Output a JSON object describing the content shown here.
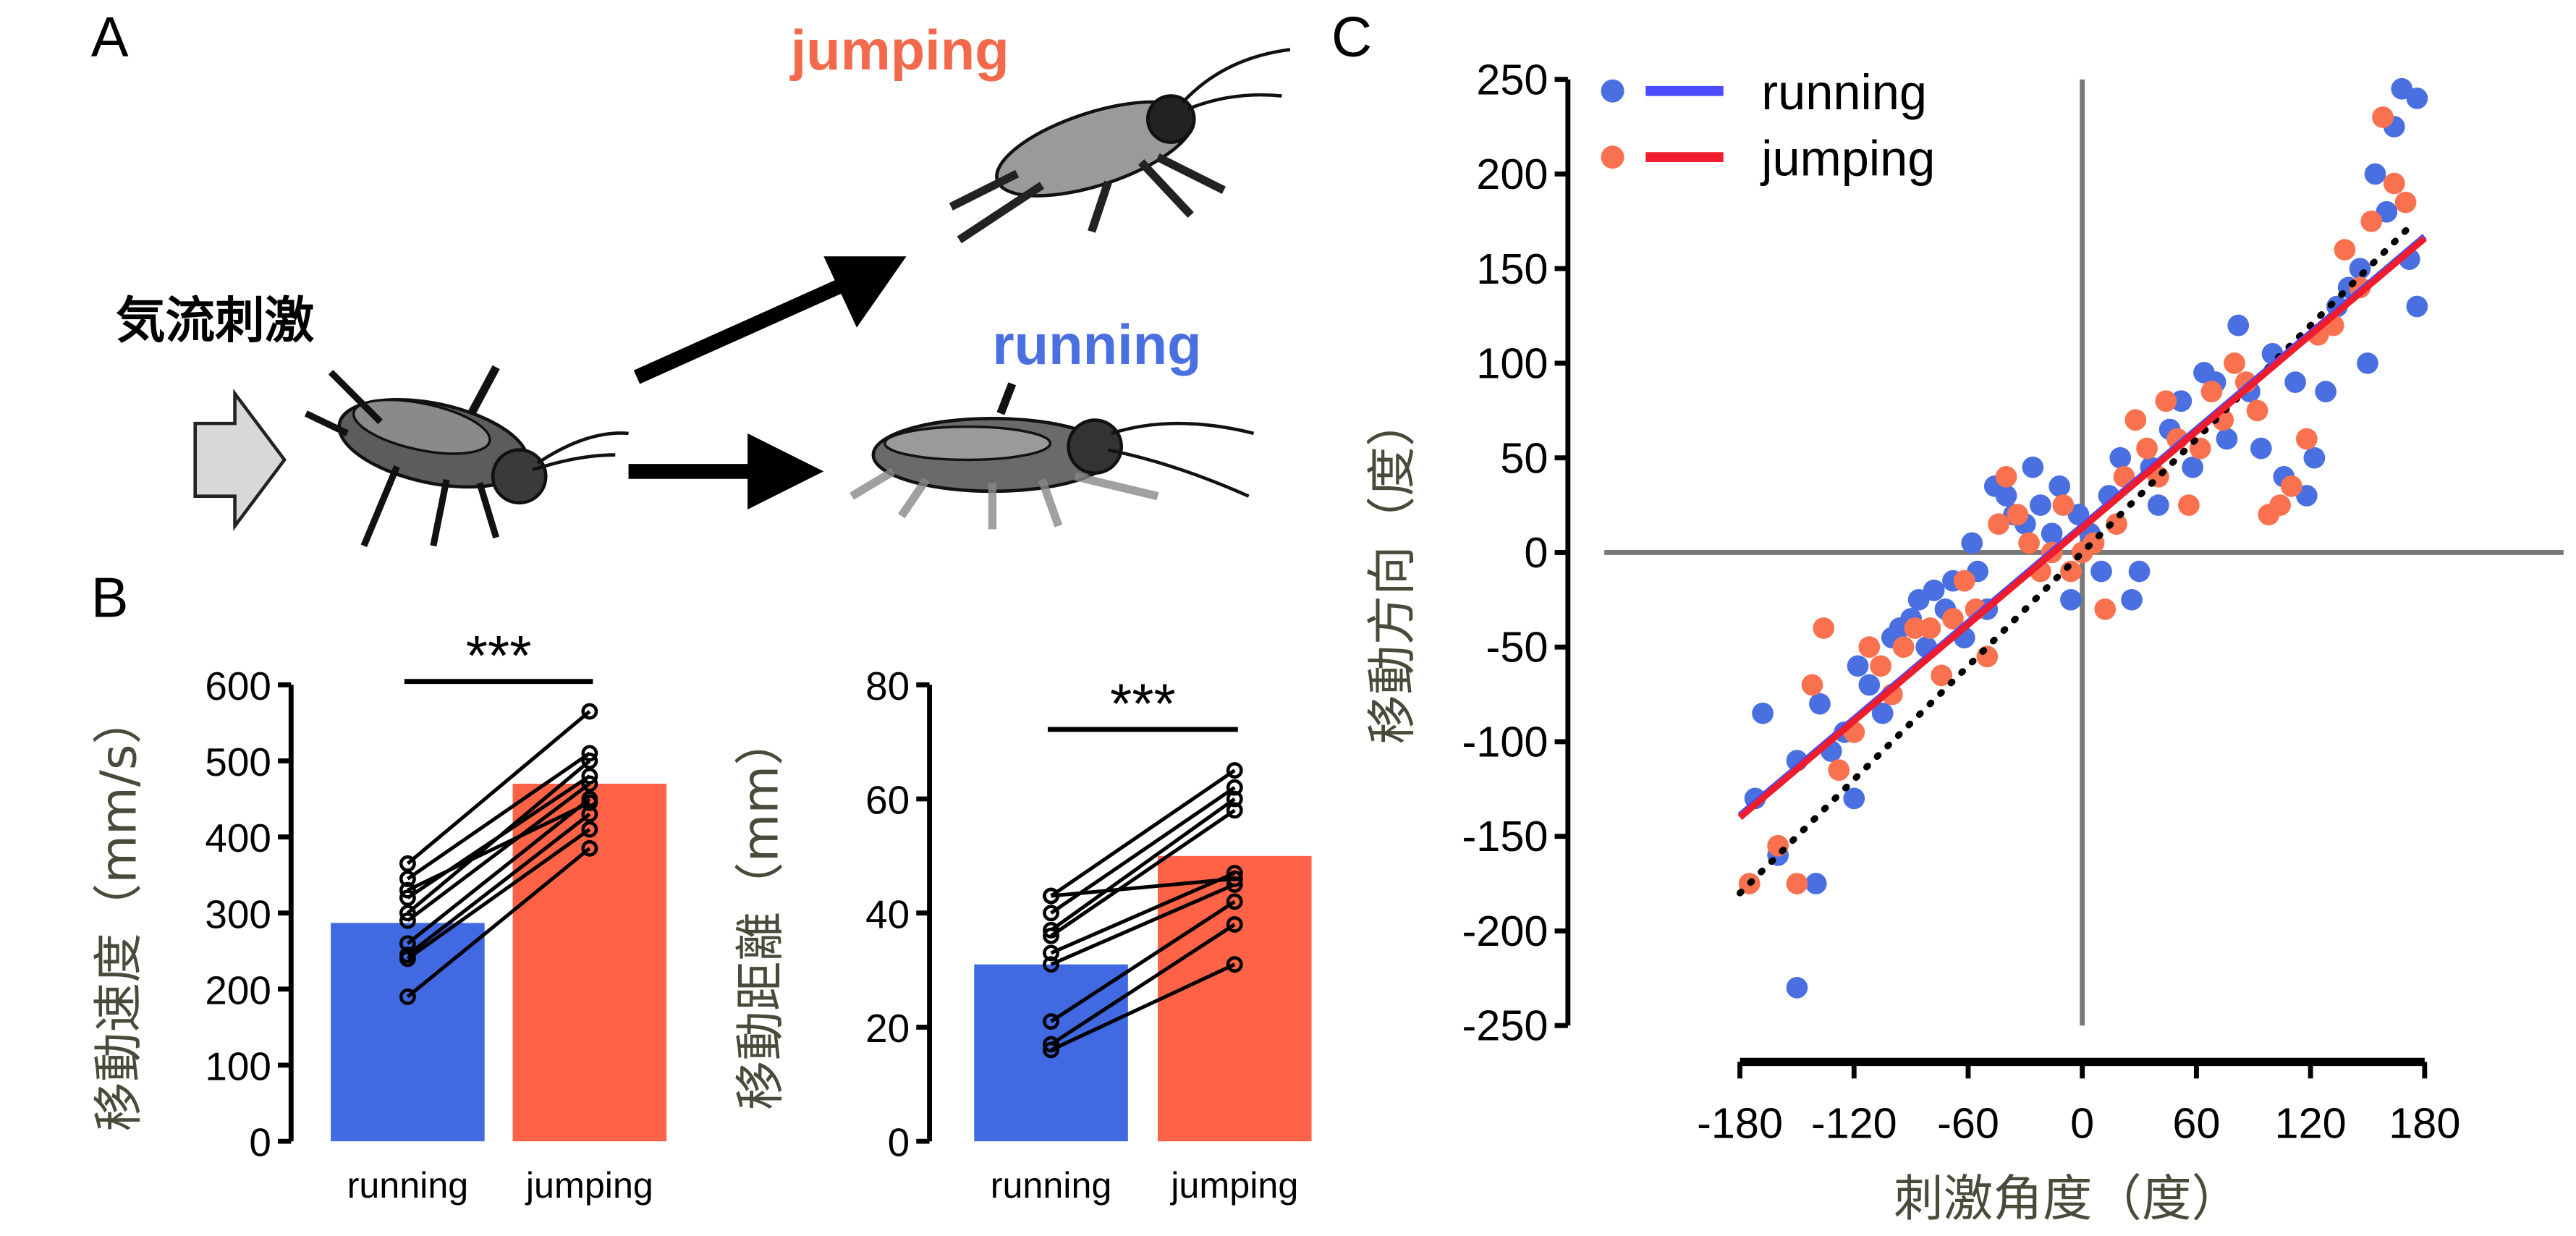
{
  "panels": {
    "a": "A",
    "b": "B",
    "c": "C"
  },
  "diagram": {
    "stimulus": "気流刺激",
    "jumping": "jumping",
    "running": "running",
    "jump_color": "#f26a4b",
    "run_color": "#4a6fe0"
  },
  "chart_data": [
    {
      "type": "bar",
      "categories": [
        "running",
        "jumping"
      ],
      "values": [
        287,
        470
      ],
      "colors": [
        "#4169e1",
        "#ff6347"
      ],
      "ylabel": "移動速度（mm/s）",
      "ylim": [
        0,
        600
      ],
      "yticks": [
        0,
        100,
        200,
        300,
        400,
        500,
        600
      ],
      "significance": "***",
      "pairs": [
        [
          190,
          385
        ],
        [
          240,
          410
        ],
        [
          245,
          430
        ],
        [
          260,
          450
        ],
        [
          290,
          470
        ],
        [
          300,
          500
        ],
        [
          320,
          480
        ],
        [
          330,
          445
        ],
        [
          345,
          510
        ],
        [
          365,
          565
        ]
      ]
    },
    {
      "type": "bar",
      "categories": [
        "running",
        "jumping"
      ],
      "values": [
        31,
        50
      ],
      "colors": [
        "#4169e1",
        "#ff6347"
      ],
      "ylabel": "移動距離（mm）",
      "ylim": [
        0,
        80
      ],
      "yticks": [
        0,
        20,
        40,
        60,
        80
      ],
      "significance": "***",
      "pairs": [
        [
          16,
          31
        ],
        [
          17,
          38
        ],
        [
          21,
          42
        ],
        [
          31,
          45
        ],
        [
          33,
          47
        ],
        [
          36,
          58
        ],
        [
          37,
          60
        ],
        [
          40,
          62
        ],
        [
          43,
          46
        ],
        [
          43,
          65
        ]
      ]
    },
    {
      "type": "scatter",
      "xlabel": "刺激角度（度）",
      "ylabel": "移動方向（度）",
      "xlim": [
        -180,
        180
      ],
      "ylim": [
        -250,
        250
      ],
      "xticks": [
        -180,
        -120,
        -60,
        0,
        60,
        120,
        180
      ],
      "yticks": [
        250,
        200,
        150,
        100,
        50,
        0,
        -50,
        -100,
        -150,
        -200,
        -250
      ],
      "legend": "top-left",
      "series": [
        {
          "name": "running",
          "color": "#4a6fe0",
          "line_color": "#4b4bff",
          "fit": {
            "slope": 0.85,
            "intercept": 14
          },
          "points": [
            [
              -172,
              -130
            ],
            [
              -168,
              -85
            ],
            [
              -160,
              -160
            ],
            [
              -150,
              -230
            ],
            [
              -150,
              -110
            ],
            [
              -140,
              -175
            ],
            [
              -138,
              -80
            ],
            [
              -132,
              -105
            ],
            [
              -125,
              -95
            ],
            [
              -120,
              -130
            ],
            [
              -118,
              -60
            ],
            [
              -112,
              -70
            ],
            [
              -105,
              -85
            ],
            [
              -100,
              -45
            ],
            [
              -96,
              -40
            ],
            [
              -90,
              -35
            ],
            [
              -86,
              -25
            ],
            [
              -82,
              -50
            ],
            [
              -78,
              -20
            ],
            [
              -72,
              -30
            ],
            [
              -68,
              -15
            ],
            [
              -62,
              -45
            ],
            [
              -58,
              5
            ],
            [
              -55,
              -10
            ],
            [
              -50,
              -30
            ],
            [
              -46,
              35
            ],
            [
              -40,
              30
            ],
            [
              -36,
              20
            ],
            [
              -30,
              15
            ],
            [
              -26,
              45
            ],
            [
              -22,
              25
            ],
            [
              -16,
              10
            ],
            [
              -12,
              35
            ],
            [
              -6,
              -25
            ],
            [
              -2,
              20
            ],
            [
              4,
              10
            ],
            [
              10,
              -10
            ],
            [
              14,
              30
            ],
            [
              20,
              50
            ],
            [
              26,
              -25
            ],
            [
              30,
              -10
            ],
            [
              36,
              45
            ],
            [
              40,
              25
            ],
            [
              46,
              65
            ],
            [
              52,
              80
            ],
            [
              58,
              45
            ],
            [
              64,
              95
            ],
            [
              70,
              90
            ],
            [
              76,
              60
            ],
            [
              82,
              120
            ],
            [
              88,
              85
            ],
            [
              94,
              55
            ],
            [
              100,
              105
            ],
            [
              106,
              40
            ],
            [
              112,
              90
            ],
            [
              118,
              30
            ],
            [
              122,
              50
            ],
            [
              128,
              85
            ],
            [
              134,
              130
            ],
            [
              140,
              140
            ],
            [
              146,
              150
            ],
            [
              150,
              100
            ],
            [
              154,
              200
            ],
            [
              160,
              180
            ],
            [
              164,
              225
            ],
            [
              168,
              245
            ],
            [
              172,
              155
            ],
            [
              176,
              130
            ],
            [
              176,
              240
            ]
          ]
        },
        {
          "name": "jumping",
          "color": "#f9714e",
          "line_color": "#ee1c2c",
          "fit": {
            "slope": 0.85,
            "intercept": 13
          },
          "points": [
            [
              -175,
              -175
            ],
            [
              -160,
              -155
            ],
            [
              -150,
              -175
            ],
            [
              -142,
              -70
            ],
            [
              -136,
              -40
            ],
            [
              -128,
              -115
            ],
            [
              -120,
              -95
            ],
            [
              -112,
              -50
            ],
            [
              -106,
              -60
            ],
            [
              -100,
              -75
            ],
            [
              -94,
              -50
            ],
            [
              -88,
              -40
            ],
            [
              -80,
              -40
            ],
            [
              -74,
              -65
            ],
            [
              -68,
              -35
            ],
            [
              -62,
              -15
            ],
            [
              -56,
              -30
            ],
            [
              -50,
              -55
            ],
            [
              -44,
              15
            ],
            [
              -40,
              40
            ],
            [
              -34,
              20
            ],
            [
              -28,
              5
            ],
            [
              -22,
              -10
            ],
            [
              -16,
              0
            ],
            [
              -10,
              25
            ],
            [
              -6,
              -10
            ],
            [
              0,
              0
            ],
            [
              6,
              5
            ],
            [
              12,
              -30
            ],
            [
              18,
              15
            ],
            [
              22,
              40
            ],
            [
              28,
              70
            ],
            [
              34,
              55
            ],
            [
              40,
              40
            ],
            [
              44,
              80
            ],
            [
              50,
              60
            ],
            [
              56,
              25
            ],
            [
              62,
              55
            ],
            [
              68,
              85
            ],
            [
              74,
              70
            ],
            [
              80,
              100
            ],
            [
              86,
              90
            ],
            [
              92,
              75
            ],
            [
              98,
              20
            ],
            [
              104,
              25
            ],
            [
              110,
              35
            ],
            [
              118,
              60
            ],
            [
              124,
              115
            ],
            [
              132,
              120
            ],
            [
              138,
              160
            ],
            [
              146,
              140
            ],
            [
              152,
              175
            ],
            [
              158,
              230
            ],
            [
              164,
              195
            ],
            [
              170,
              185
            ]
          ]
        }
      ],
      "diagonal": "dotted y = x"
    }
  ]
}
